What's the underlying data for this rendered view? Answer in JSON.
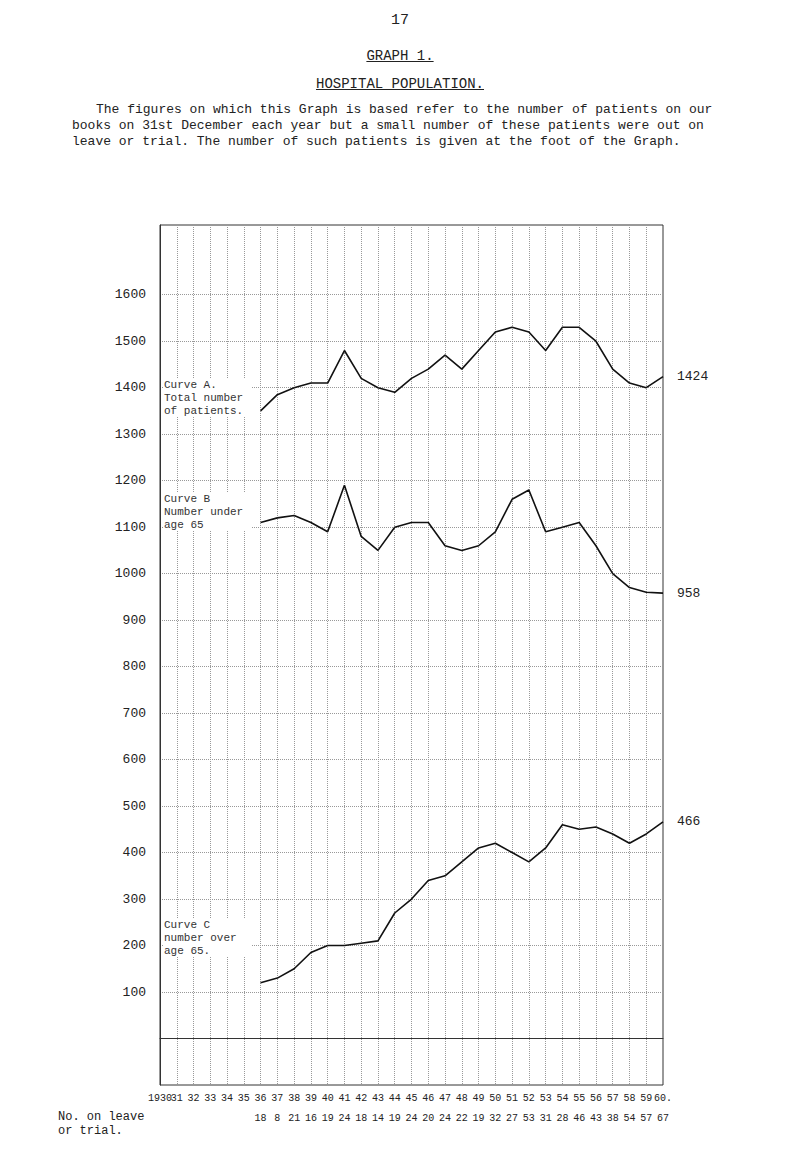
{
  "page_number": "17",
  "chart_data": {
    "type": "line",
    "title": "GRAPH 1.",
    "subtitle": "HOSPITAL POPULATION.",
    "note": "The figures on which this Graph is based refer to the number of patients on our books on 31st December each year but a small number of these patients were out on leave or trial. The number of such patients is given at the foot of the Graph.",
    "categories": [
      "1930",
      "31",
      "32",
      "33",
      "34",
      "35",
      "36",
      "37",
      "38",
      "39",
      "40",
      "41",
      "42",
      "43",
      "44",
      "45",
      "46",
      "47",
      "48",
      "49",
      "50",
      "51",
      "52",
      "53",
      "54",
      "55",
      "56",
      "57",
      "58",
      "59",
      "60."
    ],
    "series": [
      {
        "name": "Curve A. Total number of patients.",
        "color": "#111111",
        "values": [
          null,
          null,
          null,
          null,
          null,
          null,
          1350,
          1385,
          1400,
          1410,
          1410,
          1480,
          1420,
          1400,
          1390,
          1420,
          1440,
          1470,
          1440,
          1480,
          1520,
          1530,
          1520,
          1480,
          1530,
          1530,
          1500,
          1440,
          1410,
          1400,
          1424
        ]
      },
      {
        "name": "Curve B Number under age 65",
        "color": "#111111",
        "values": [
          null,
          null,
          null,
          null,
          null,
          null,
          1110,
          1120,
          1125,
          1110,
          1090,
          1190,
          1080,
          1050,
          1100,
          1110,
          1110,
          1060,
          1050,
          1060,
          1090,
          1160,
          1180,
          1090,
          1100,
          1110,
          1060,
          1000,
          970,
          960,
          958
        ]
      },
      {
        "name": "Curve C number over age 65.",
        "color": "#111111",
        "values": [
          null,
          null,
          null,
          null,
          null,
          null,
          120,
          130,
          150,
          185,
          200,
          200,
          205,
          210,
          270,
          300,
          340,
          350,
          380,
          410,
          420,
          400,
          380,
          410,
          460,
          450,
          455,
          440,
          420,
          440,
          466
        ]
      }
    ],
    "leave_row": {
      "label": "No. on leave or trial.",
      "values": [
        null,
        null,
        null,
        null,
        null,
        null,
        18,
        8,
        21,
        16,
        19,
        24,
        18,
        14,
        19,
        24,
        20,
        24,
        22,
        19,
        32,
        27,
        53,
        31,
        28,
        46,
        43,
        38,
        54,
        57,
        67
      ]
    },
    "ylim": [
      -100,
      1750
    ],
    "yticks": [
      100,
      200,
      300,
      400,
      500,
      600,
      700,
      800,
      900,
      1000,
      1100,
      1200,
      1300,
      1400,
      1500,
      1600
    ],
    "grid": true
  }
}
